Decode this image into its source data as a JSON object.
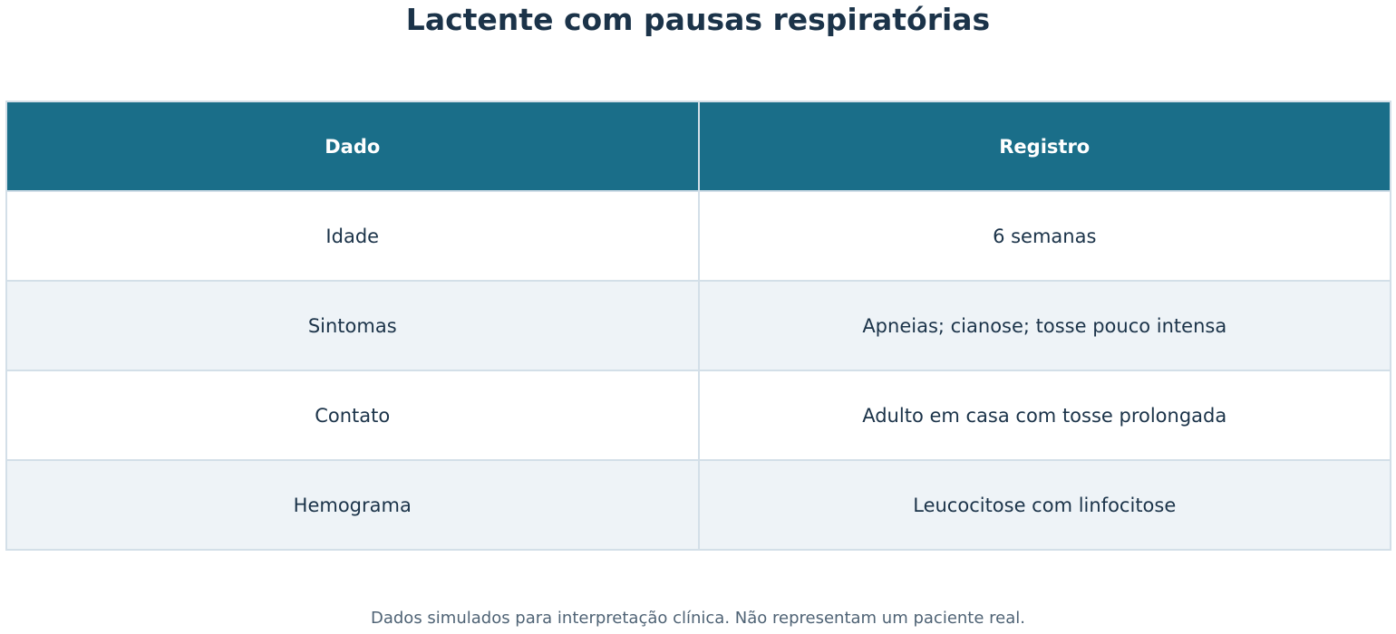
{
  "title": "Lactente com pausas respiratórias",
  "table": {
    "header": [
      "Dado",
      "Registro"
    ],
    "rows": [
      [
        "Idade",
        "6 semanas"
      ],
      [
        "Sintomas",
        "Apneias; cianose; tosse pouco intensa"
      ],
      [
        "Contato",
        "Adulto em casa com tosse prolongada"
      ],
      [
        "Hemograma",
        "Leucocitose com linfocitose"
      ]
    ]
  },
  "footnote": "Dados simulados para interpretação clínica. Não representam um paciente real."
}
